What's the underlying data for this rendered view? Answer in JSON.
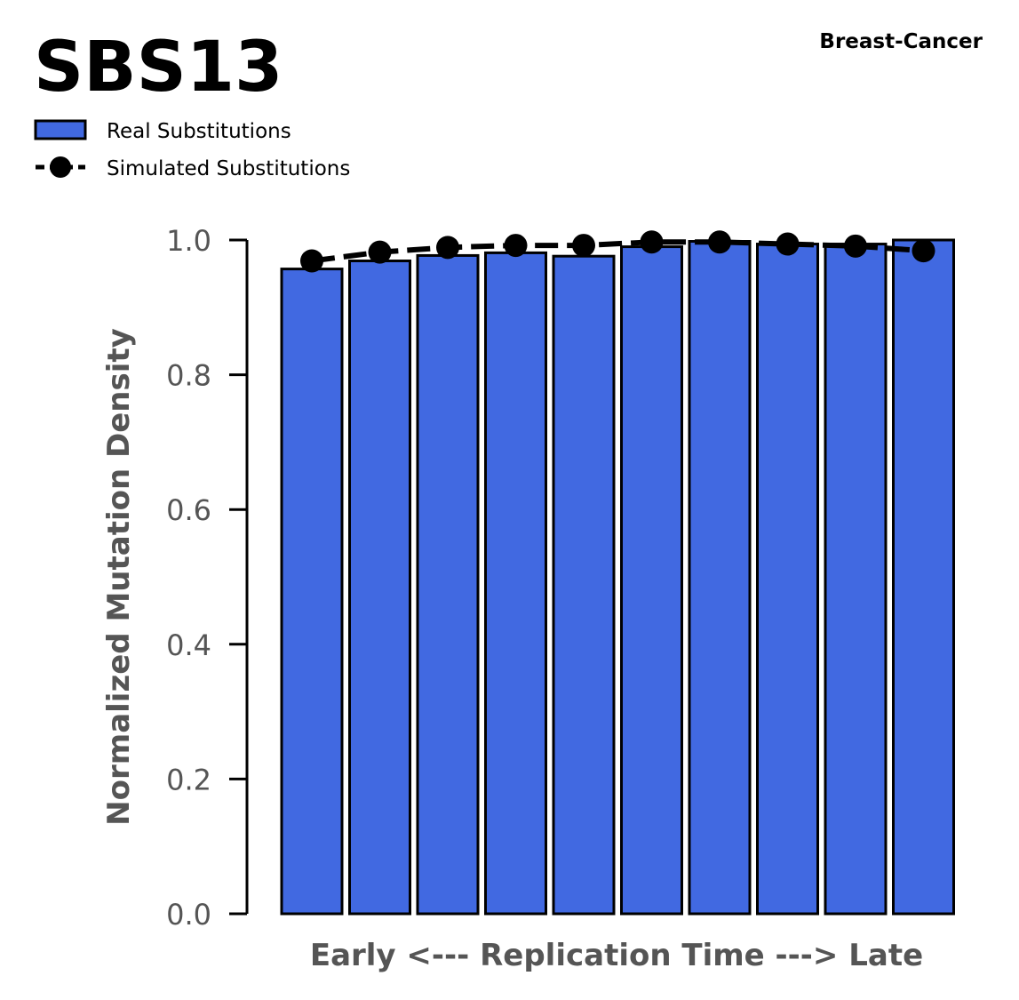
{
  "chart_data": {
    "type": "bar",
    "title": "SBS13",
    "subtitle": "Breast-Cancer",
    "xlabel": "Early <--- Replication Time ---> Late",
    "ylabel": "Normalized Mutation Density",
    "ylim": [
      0,
      1.0
    ],
    "yticks": [
      "0.0",
      "0.2",
      "0.4",
      "0.6",
      "0.8",
      "1.0"
    ],
    "x": [
      1,
      2,
      3,
      4,
      5,
      6,
      7,
      8,
      9,
      10
    ],
    "grid": false,
    "legend_position": "top-left",
    "series": [
      {
        "name": "Real Substitutions",
        "type": "bar",
        "color": "#4169E1",
        "values": [
          0.957,
          0.969,
          0.977,
          0.981,
          0.976,
          0.99,
          0.998,
          0.994,
          0.994,
          1.0
        ]
      },
      {
        "name": "Simulated Substitutions",
        "type": "line",
        "color": "#000000",
        "values": [
          0.969,
          0.982,
          0.989,
          0.992,
          0.992,
          0.997,
          0.997,
          0.994,
          0.991,
          0.984
        ]
      }
    ]
  }
}
